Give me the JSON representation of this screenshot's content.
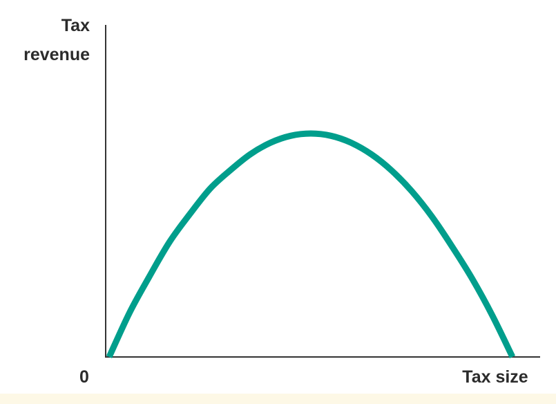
{
  "chart_data": {
    "type": "line",
    "ylabel_lines": [
      "Tax",
      "revenue"
    ],
    "xlabel": "Tax size",
    "origin_label": "0",
    "xlim": [
      0,
      1
    ],
    "ylim": [
      0,
      1
    ],
    "grid": false,
    "series": [
      {
        "color": "#009e8c",
        "x": [
          0,
          0.05,
          0.1,
          0.15,
          0.2,
          0.25,
          0.3,
          0.35,
          0.4,
          0.45,
          0.5,
          0.55,
          0.6,
          0.65,
          0.7,
          0.75,
          0.8,
          0.85,
          0.9,
          0.95,
          1.0
        ],
        "y": [
          0,
          0.19,
          0.35,
          0.5,
          0.62,
          0.73,
          0.81,
          0.88,
          0.93,
          0.96,
          0.97,
          0.96,
          0.93,
          0.88,
          0.81,
          0.72,
          0.61,
          0.48,
          0.34,
          0.18,
          0
        ]
      }
    ]
  }
}
